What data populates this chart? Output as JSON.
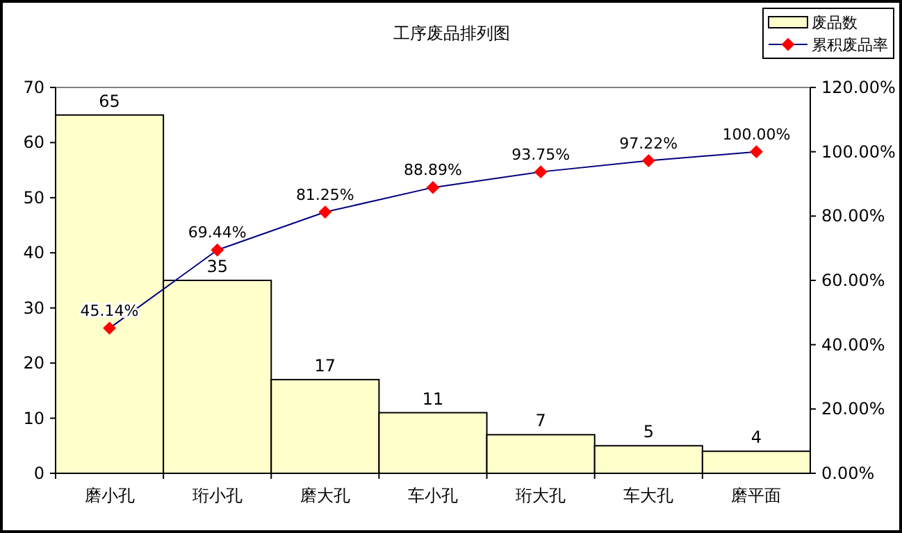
{
  "chart_data": {
    "type": "bar",
    "title": "工序废品排列图",
    "categories": [
      "磨小孔",
      "珩小孔",
      "磨大孔",
      "车小孔",
      "珩大孔",
      "车大孔",
      "磨平面"
    ],
    "series": [
      {
        "name": "废品数",
        "color": "#ffffcc",
        "values": [
          65,
          35,
          17,
          11,
          7,
          5,
          4
        ],
        "value_labels": [
          "65",
          "35",
          "17",
          "11",
          "7",
          "5",
          "4"
        ]
      },
      {
        "name": "累积废品率",
        "type": "line",
        "axis": "y2",
        "color": "#000080",
        "marker": "diamond",
        "values": [
          45.14,
          69.44,
          81.25,
          88.89,
          93.75,
          97.22,
          100.0
        ],
        "value_labels": [
          "45.14%",
          "69.44%",
          "81.25%",
          "88.89%",
          "93.75%",
          "97.22%",
          "100.00%"
        ]
      }
    ],
    "ylim": [
      0,
      70
    ],
    "yticks": [
      0,
      10,
      20,
      30,
      40,
      50,
      60,
      70
    ],
    "y2lim": [
      0,
      120
    ],
    "y2ticks": [
      {
        "value": 0,
        "label": "0.00%"
      },
      {
        "value": 20,
        "label": "20.00%"
      },
      {
        "value": 40,
        "label": "40.00%"
      },
      {
        "value": 60,
        "label": "60.00%"
      },
      {
        "value": 80,
        "label": "80.00%"
      },
      {
        "value": 100,
        "label": "100.00%"
      },
      {
        "value": 120,
        "label": "120.00%"
      }
    ],
    "legend": "top right",
    "grid": false
  }
}
